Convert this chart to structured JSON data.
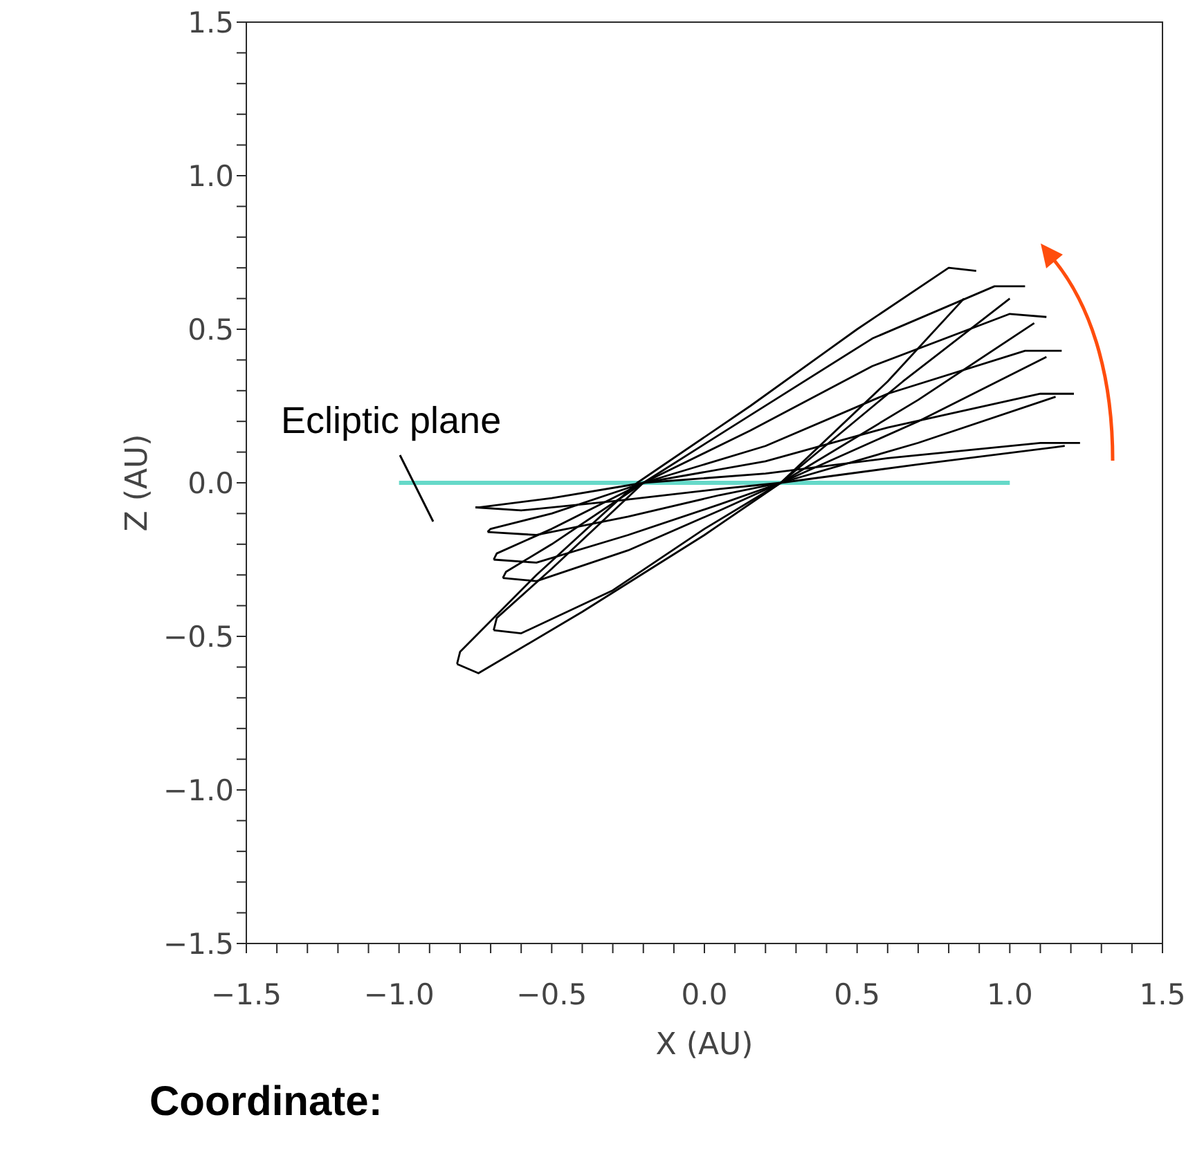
{
  "chart_data": {
    "type": "line",
    "xlabel": "X (AU)",
    "ylabel": "Z (AU)",
    "xlim": [
      -1.5,
      1.5
    ],
    "ylim": [
      -1.5,
      1.5
    ],
    "xticks": [
      {
        "value": -1.5,
        "label": "−1.5"
      },
      {
        "value": -1.4,
        "label": null
      },
      {
        "value": -1.3,
        "label": null
      },
      {
        "value": -1.2,
        "label": null
      },
      {
        "value": -1.1,
        "label": null
      },
      {
        "value": -1.0,
        "label": "−1.0"
      },
      {
        "value": -0.9,
        "label": null
      },
      {
        "value": -0.8,
        "label": null
      },
      {
        "value": -0.7,
        "label": null
      },
      {
        "value": -0.6,
        "label": null
      },
      {
        "value": -0.5,
        "label": "−0.5"
      },
      {
        "value": -0.4,
        "label": null
      },
      {
        "value": -0.3,
        "label": null
      },
      {
        "value": -0.2,
        "label": null
      },
      {
        "value": -0.1,
        "label": null
      },
      {
        "value": 0,
        "label": "0.0"
      },
      {
        "value": 0.1,
        "label": null
      },
      {
        "value": 0.2,
        "label": null
      },
      {
        "value": 0.3,
        "label": null
      },
      {
        "value": 0.4,
        "label": null
      },
      0.5,
      {
        "value": 0.6,
        "label": null
      },
      {
        "value": 0.7,
        "label": null
      },
      {
        "value": 0.8,
        "label": null
      },
      {
        "value": 0.9,
        "label": null
      },
      {
        "value": 1,
        "label": "1.0"
      },
      {
        "value": 1.1,
        "label": null
      },
      {
        "value": 1.2,
        "label": null
      },
      {
        "value": 1.3,
        "label": null
      },
      {
        "value": 1.4,
        "label": null
      },
      1.5
    ],
    "yticks": [
      {
        "value": -1.5,
        "label": "−1.5"
      },
      {
        "value": -1.4,
        "label": null
      },
      {
        "value": -1.3,
        "label": null
      },
      {
        "value": -1.2,
        "label": null
      },
      {
        "value": -1.1,
        "label": null
      },
      {
        "value": -1.0,
        "label": "−1.0"
      },
      {
        "value": -0.9,
        "label": null
      },
      {
        "value": -0.8,
        "label": null
      },
      {
        "value": -0.7,
        "label": null
      },
      {
        "value": -0.6,
        "label": null
      },
      {
        "value": -0.5,
        "label": "−0.5"
      },
      {
        "value": -0.4,
        "label": null
      },
      {
        "value": -0.3,
        "label": null
      },
      {
        "value": -0.2,
        "label": null
      },
      {
        "value": -0.1,
        "label": null
      },
      {
        "value": 0,
        "label": "0.0"
      },
      {
        "value": 0.1,
        "label": null
      },
      {
        "value": 0.2,
        "label": null
      },
      {
        "value": 0.3,
        "label": null
      },
      {
        "value": 0.4,
        "label": null
      },
      0.5,
      {
        "value": 0.6,
        "label": null
      },
      {
        "value": 0.7,
        "label": null
      },
      {
        "value": 0.8,
        "label": null
      },
      {
        "value": 0.9,
        "label": null
      },
      {
        "value": 1,
        "label": "1.0"
      },
      {
        "value": 1.1,
        "label": null
      },
      {
        "value": 1.2,
        "label": null
      },
      {
        "value": 1.3,
        "label": null
      },
      {
        "value": 1.4,
        "label": null
      },
      1.5
    ],
    "marker": "none",
    "series": [
      {
        "color": "#66d9c9",
        "x": [
          -1.0,
          1.0
        ],
        "values": [
          0,
          0
        ]
      },
      {
        "color": "#000000",
        "x": [
          -0.81,
          -0.8,
          -0.55,
          -0.22,
          0.15,
          0.5,
          0.8,
          0.89
        ],
        "values": [
          -0.59,
          -0.55,
          -0.3,
          0.0,
          0.25,
          0.5,
          0.7,
          0.69
        ]
      },
      {
        "color": "#000000",
        "x": [
          -0.81,
          -0.74,
          -0.4,
          0.0,
          0.25,
          0.6,
          0.85
        ],
        "values": [
          -0.59,
          -0.62,
          -0.42,
          -0.17,
          0.0,
          0.33,
          0.6
        ]
      },
      {
        "color": "#000000",
        "x": [
          -0.69,
          -0.68,
          -0.5,
          -0.2,
          0.15,
          0.55,
          0.95,
          1.05
        ],
        "values": [
          -0.48,
          -0.44,
          -0.28,
          0.0,
          0.22,
          0.47,
          0.64,
          0.64
        ]
      },
      {
        "color": "#000000",
        "x": [
          -0.69,
          -0.6,
          -0.3,
          0.0,
          0.25,
          0.65,
          1.0
        ],
        "values": [
          -0.48,
          -0.49,
          -0.35,
          -0.15,
          0.0,
          0.33,
          0.6
        ]
      },
      {
        "color": "#000000",
        "x": [
          -0.66,
          -0.65,
          -0.5,
          -0.2,
          0.15,
          0.55,
          1.0,
          1.12
        ],
        "values": [
          -0.31,
          -0.29,
          -0.2,
          0.0,
          0.17,
          0.38,
          0.55,
          0.54
        ]
      },
      {
        "color": "#000000",
        "x": [
          -0.66,
          -0.55,
          -0.25,
          0.05,
          0.25,
          0.7,
          1.08
        ],
        "values": [
          -0.31,
          -0.32,
          -0.22,
          -0.09,
          0.0,
          0.27,
          0.52
        ]
      },
      {
        "color": "#000000",
        "x": [
          -0.69,
          -0.68,
          -0.5,
          -0.2,
          0.2,
          0.6,
          1.05,
          1.17
        ],
        "values": [
          -0.25,
          -0.23,
          -0.15,
          0.0,
          0.12,
          0.29,
          0.43,
          0.43
        ]
      },
      {
        "color": "#000000",
        "x": [
          -0.69,
          -0.55,
          -0.25,
          0.05,
          0.25,
          0.7,
          1.12
        ],
        "values": [
          -0.25,
          -0.26,
          -0.17,
          -0.07,
          0.0,
          0.2,
          0.41
        ]
      },
      {
        "color": "#000000",
        "x": [
          -0.71,
          -0.7,
          -0.5,
          -0.2,
          0.2,
          0.6,
          1.1,
          1.21
        ],
        "values": [
          -0.16,
          -0.15,
          -0.1,
          0.0,
          0.07,
          0.18,
          0.29,
          0.29
        ]
      },
      {
        "color": "#000000",
        "x": [
          -0.71,
          -0.55,
          -0.25,
          0.05,
          0.25,
          0.7,
          1.15
        ],
        "values": [
          -0.16,
          -0.17,
          -0.11,
          -0.04,
          0.0,
          0.13,
          0.28
        ]
      },
      {
        "color": "#000000",
        "x": [
          -0.75,
          -0.74,
          -0.5,
          -0.2,
          0.2,
          0.6,
          1.1,
          1.23
        ],
        "values": [
          -0.08,
          -0.08,
          -0.05,
          0.0,
          0.03,
          0.08,
          0.13,
          0.13
        ]
      },
      {
        "color": "#000000",
        "x": [
          -0.75,
          -0.6,
          -0.3,
          0.05,
          0.25,
          0.7,
          1.18
        ],
        "values": [
          -0.08,
          -0.09,
          -0.06,
          -0.02,
          0.0,
          0.06,
          0.12
        ]
      }
    ],
    "annotations": [
      "Ecliptic plane",
      "Coordinate:"
    ]
  }
}
